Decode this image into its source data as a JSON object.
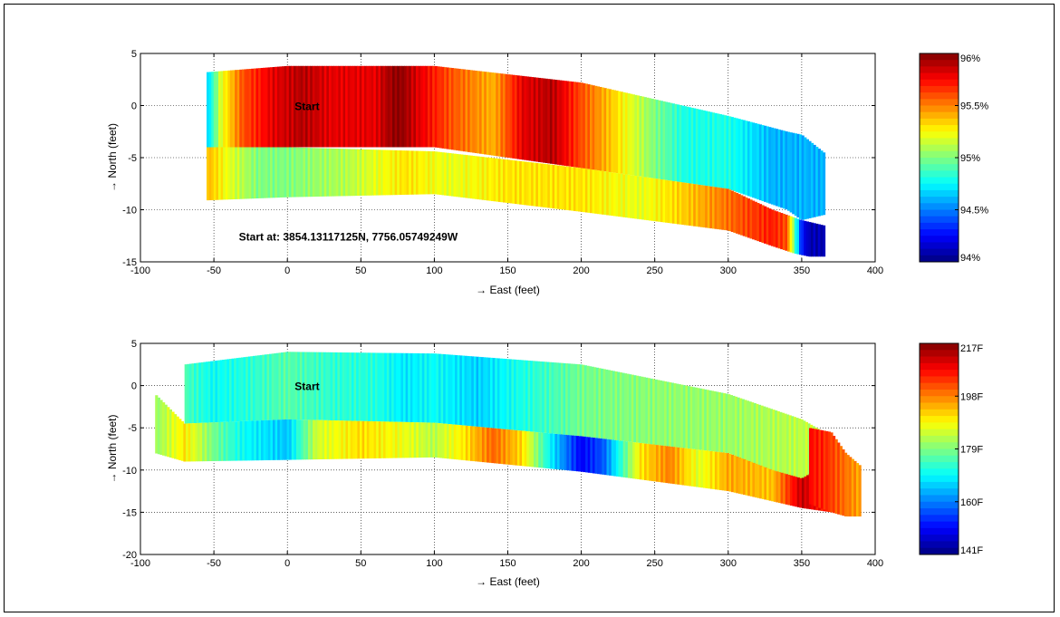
{
  "chart_data": [
    {
      "type": "heatmap",
      "xlabel": "→ East (feet)",
      "ylabel": "→ North (feet)",
      "xlim": [
        -100,
        400
      ],
      "ylim": [
        -15,
        5
      ],
      "xticks": [
        -100,
        -50,
        0,
        50,
        100,
        150,
        200,
        250,
        300,
        350,
        400
      ],
      "yticks": [
        -15,
        -10,
        -5,
        0,
        5
      ],
      "grid": true,
      "annotations": [
        {
          "text": "Start",
          "x": 5,
          "y": 0
        },
        {
          "text": "Start at:   3854.13117125N, 7756.05749249W",
          "x": -33,
          "y": -12.5
        }
      ],
      "colorbar": {
        "min": 94,
        "max": 96,
        "tick_values": [
          96,
          95.5,
          95,
          94.5,
          94
        ],
        "tick_labels": [
          "96%",
          "95.5%",
          "95%",
          "94.5%",
          "94%"
        ]
      },
      "tracks": [
        {
          "path_top": [
            [
              -55,
              3.2
            ],
            [
              0,
              3.8
            ],
            [
              100,
              3.8
            ],
            [
              200,
              2.2
            ],
            [
              300,
              -1
            ],
            [
              340,
              -2.5
            ],
            [
              350,
              -2.8
            ],
            [
              365,
              -4.5
            ]
          ],
          "path_bottom": [
            [
              -55,
              -4
            ],
            [
              0,
              -4
            ],
            [
              100,
              -4
            ],
            [
              200,
              -6
            ],
            [
              300,
              -8
            ],
            [
              340,
              -10
            ],
            [
              350,
              -11
            ],
            [
              365,
              -10.5
            ]
          ],
          "values": [
            [
              -55,
              94.6
            ],
            [
              -45,
              95.2
            ],
            [
              -30,
              95.6
            ],
            [
              -10,
              95.8
            ],
            [
              10,
              95.9
            ],
            [
              30,
              95.8
            ],
            [
              60,
              95.8
            ],
            [
              75,
              96
            ],
            [
              90,
              95.8
            ],
            [
              110,
              95.6
            ],
            [
              140,
              95.4
            ],
            [
              160,
              95.8
            ],
            [
              180,
              95.9
            ],
            [
              200,
              95.6
            ],
            [
              225,
              95.3
            ],
            [
              250,
              95
            ],
            [
              270,
              94.8
            ],
            [
              300,
              94.8
            ],
            [
              330,
              94.6
            ],
            [
              350,
              94.6
            ],
            [
              365,
              94.6
            ]
          ]
        },
        {
          "path_top": [
            [
              -55,
              -4
            ],
            [
              0,
              -4
            ],
            [
              100,
              -4.4
            ],
            [
              200,
              -6
            ],
            [
              300,
              -8
            ],
            [
              330,
              -10
            ],
            [
              350,
              -11
            ],
            [
              365,
              -11.5
            ]
          ],
          "path_bottom": [
            [
              -55,
              -9.1
            ],
            [
              0,
              -8.8
            ],
            [
              100,
              -8.5
            ],
            [
              200,
              -10.2
            ],
            [
              300,
              -12
            ],
            [
              330,
              -13.5
            ],
            [
              345,
              -14.2
            ],
            [
              355,
              -14.5
            ]
          ],
          "values": [
            [
              -55,
              95.4
            ],
            [
              -40,
              95.2
            ],
            [
              -20,
              95
            ],
            [
              0,
              95
            ],
            [
              40,
              95.1
            ],
            [
              80,
              95.3
            ],
            [
              110,
              95.2
            ],
            [
              150,
              95.3
            ],
            [
              200,
              95.3
            ],
            [
              240,
              95.2
            ],
            [
              280,
              95.4
            ],
            [
              310,
              95.6
            ],
            [
              330,
              95.7
            ],
            [
              340,
              95.6
            ],
            [
              350,
              94.3
            ],
            [
              355,
              94.1
            ]
          ]
        }
      ]
    },
    {
      "type": "heatmap",
      "xlabel": "→ East (feet)",
      "ylabel": "→ North (feet)",
      "xlim": [
        -100,
        400
      ],
      "ylim": [
        -20,
        5
      ],
      "xticks": [
        -100,
        -50,
        0,
        50,
        100,
        150,
        200,
        250,
        300,
        350,
        400
      ],
      "yticks": [
        -20,
        -15,
        -10,
        -5,
        0,
        5
      ],
      "grid": true,
      "annotations": [
        {
          "text": "Start",
          "x": 5,
          "y": 0
        }
      ],
      "colorbar": {
        "min": 141,
        "max": 217,
        "tick_values": [
          217,
          198,
          179,
          160,
          141
        ],
        "tick_labels": [
          "217F",
          "198F",
          "179F",
          "160F",
          "141F"
        ]
      },
      "tracks": [
        {
          "path_top": [
            [
              -70,
              2.5
            ],
            [
              0,
              4
            ],
            [
              100,
              3.8
            ],
            [
              200,
              2.5
            ],
            [
              300,
              -1
            ],
            [
              350,
              -4
            ],
            [
              370,
              -6
            ]
          ],
          "path_bottom": [
            [
              -70,
              -4.5
            ],
            [
              0,
              -4
            ],
            [
              100,
              -4.4
            ],
            [
              200,
              -6
            ],
            [
              300,
              -8
            ],
            [
              340,
              -11
            ],
            [
              355,
              -12
            ],
            [
              370,
              -12
            ]
          ],
          "values": [
            [
              -70,
              175
            ],
            [
              -50,
              170
            ],
            [
              -30,
              172
            ],
            [
              0,
              176
            ],
            [
              30,
              173
            ],
            [
              60,
              172
            ],
            [
              80,
              168
            ],
            [
              100,
              170
            ],
            [
              130,
              166
            ],
            [
              150,
              170
            ],
            [
              170,
              173
            ],
            [
              200,
              178
            ],
            [
              250,
              180
            ],
            [
              300,
              181
            ],
            [
              340,
              183
            ],
            [
              360,
              184
            ],
            [
              370,
              186
            ]
          ]
        },
        {
          "path_top": [
            [
              -90,
              -1
            ],
            [
              -70,
              -4.5
            ],
            [
              0,
              -4
            ],
            [
              100,
              -4.4
            ],
            [
              200,
              -6
            ],
            [
              300,
              -8
            ],
            [
              330,
              -10
            ],
            [
              350,
              -11
            ],
            [
              370,
              -9
            ]
          ],
          "path_bottom": [
            [
              -90,
              -8
            ],
            [
              -70,
              -9
            ],
            [
              0,
              -8.8
            ],
            [
              100,
              -8.5
            ],
            [
              200,
              -10.2
            ],
            [
              300,
              -12.5
            ],
            [
              350,
              -14.5
            ],
            [
              370,
              -15
            ]
          ],
          "values": [
            [
              -90,
              180
            ],
            [
              -70,
              190
            ],
            [
              -50,
              178
            ],
            [
              -30,
              170
            ],
            [
              0,
              165
            ],
            [
              20,
              185
            ],
            [
              50,
              191
            ],
            [
              80,
              187
            ],
            [
              100,
              183
            ],
            [
              120,
              190
            ],
            [
              140,
              200
            ],
            [
              160,
              191
            ],
            [
              180,
              168
            ],
            [
              200,
              150
            ],
            [
              215,
              157
            ],
            [
              240,
              190
            ],
            [
              260,
              198
            ],
            [
              280,
              186
            ],
            [
              300,
              195
            ],
            [
              330,
              193
            ],
            [
              350,
              212
            ],
            [
              365,
              206
            ]
          ]
        },
        {
          "path_top": [
            [
              355,
              -5
            ],
            [
              370,
              -5.5
            ],
            [
              380,
              -8
            ],
            [
              390,
              -9.5
            ]
          ],
          "path_bottom": [
            [
              355,
              -14
            ],
            [
              370,
              -15
            ],
            [
              380,
              -15.5
            ],
            [
              390,
              -15.5
            ]
          ],
          "values": [
            [
              355,
              207
            ],
            [
              365,
              205
            ],
            [
              375,
              201
            ],
            [
              385,
              197
            ],
            [
              390,
              195
            ]
          ]
        }
      ]
    }
  ]
}
